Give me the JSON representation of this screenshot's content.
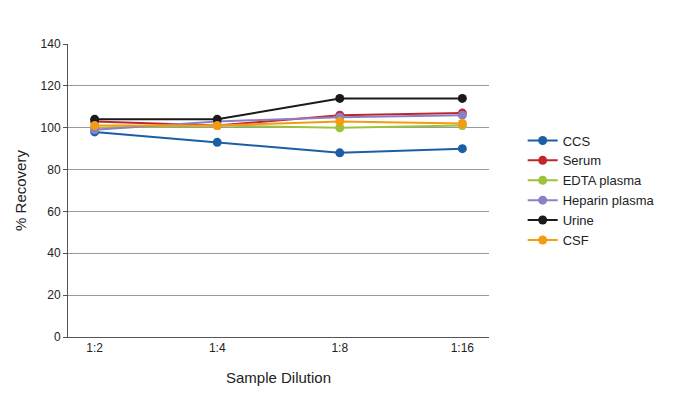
{
  "chart_data": {
    "type": "line",
    "x_label": "Sample Dilution",
    "y_label": "% Recovery",
    "categories": [
      "1:2",
      "1:4",
      "1:8",
      "1:16"
    ],
    "series": [
      {
        "name": "CCS",
        "color": "#1b5ea6",
        "values": [
          98,
          93,
          88,
          90
        ]
      },
      {
        "name": "Serum",
        "color": "#c0272d",
        "values": [
          103,
          101,
          106,
          107
        ]
      },
      {
        "name": "EDTA plasma",
        "color": "#9dc23b",
        "values": [
          100,
          101,
          100,
          101
        ]
      },
      {
        "name": "Heparin plasma",
        "color": "#8c7fc4",
        "values": [
          99,
          103,
          105,
          106
        ]
      },
      {
        "name": "Urine",
        "color": "#1a1a1a",
        "values": [
          104,
          104,
          114,
          114
        ]
      },
      {
        "name": "CSF",
        "color": "#f39c12",
        "values": [
          101,
          101,
          103,
          102
        ]
      }
    ],
    "ylim": [
      0,
      140
    ],
    "yticks": [
      0,
      20,
      40,
      60,
      80,
      100,
      120,
      140
    ],
    "grid": true,
    "legend": "right",
    "marker": "circle",
    "line_style": "solid"
  }
}
